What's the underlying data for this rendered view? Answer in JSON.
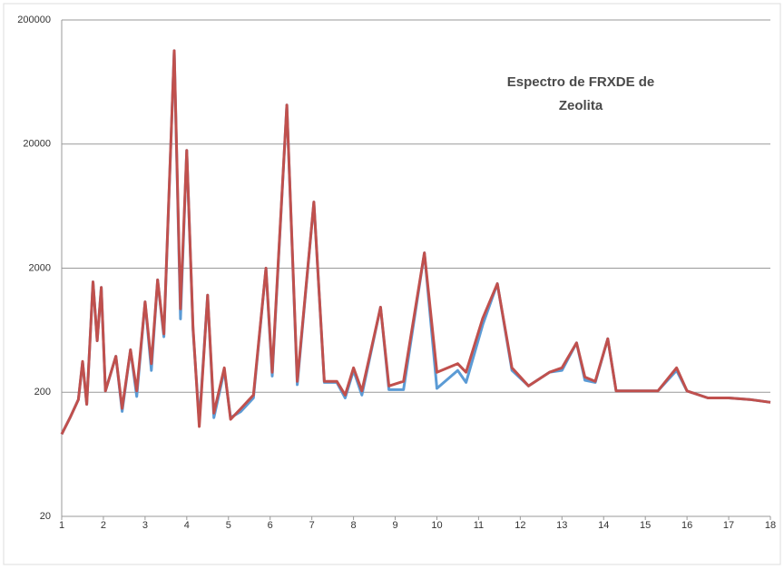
{
  "chart_data": {
    "type": "line",
    "title": "Espectro de FRXDE de Zeolita",
    "x": [
      1.0,
      1.2,
      1.4,
      1.5,
      1.6,
      1.75,
      1.85,
      1.95,
      2.05,
      2.3,
      2.45,
      2.65,
      2.8,
      3.0,
      3.15,
      3.3,
      3.45,
      3.7,
      3.85,
      4.0,
      4.15,
      4.3,
      4.5,
      4.65,
      4.9,
      5.05,
      5.3,
      5.6,
      5.9,
      6.05,
      6.4,
      6.65,
      7.05,
      7.3,
      7.6,
      7.8,
      8.0,
      8.2,
      8.65,
      8.85,
      9.2,
      9.7,
      10.0,
      10.5,
      10.7,
      11.1,
      11.45,
      11.8,
      12.2,
      12.7,
      13.0,
      13.35,
      13.55,
      13.8,
      14.1,
      14.3,
      14.8,
      15.3,
      15.75,
      16.0,
      16.5,
      17.0,
      17.5,
      18.0
    ],
    "series": [
      {
        "color": "#5b9bd5",
        "values": [
          92,
          125,
          175,
          350,
          160,
          1550,
          520,
          1400,
          205,
          390,
          140,
          440,
          185,
          1070,
          300,
          1610,
          560,
          113000,
          780,
          17800,
          640,
          115,
          1210,
          125,
          300,
          125,
          140,
          180,
          2000,
          270,
          41200,
          230,
          6820,
          240,
          240,
          180,
          300,
          190,
          970,
          210,
          210,
          2660,
          215,
          300,
          240,
          700,
          1500,
          300,
          225,
          290,
          300,
          500,
          250,
          240,
          540,
          205,
          205,
          205,
          300,
          205,
          180,
          180,
          175,
          166
        ]
      },
      {
        "color": "#c0504d",
        "values": [
          92,
          125,
          175,
          354,
          160,
          1550,
          520,
          1400,
          205,
          390,
          148,
          440,
          205,
          1070,
          340,
          1610,
          590,
          113000,
          940,
          17800,
          670,
          106,
          1210,
          136,
          315,
          121,
          148,
          190,
          2000,
          290,
          41200,
          245,
          6820,
          245,
          245,
          190,
          315,
          205,
          970,
          225,
          245,
          2660,
          290,
          340,
          290,
          790,
          1500,
          315,
          225,
          290,
          315,
          500,
          265,
          245,
          540,
          205,
          205,
          205,
          315,
          205,
          180,
          180,
          175,
          166
        ]
      }
    ],
    "xlim": [
      1,
      18
    ],
    "xticks": [
      1,
      2,
      3,
      4,
      5,
      6,
      7,
      8,
      9,
      10,
      11,
      12,
      13,
      14,
      15,
      16,
      17,
      18
    ],
    "ylim": [
      20,
      200000
    ],
    "yticks": [
      20,
      200,
      2000,
      20000,
      200000
    ],
    "log_y": true,
    "grid": true
  }
}
